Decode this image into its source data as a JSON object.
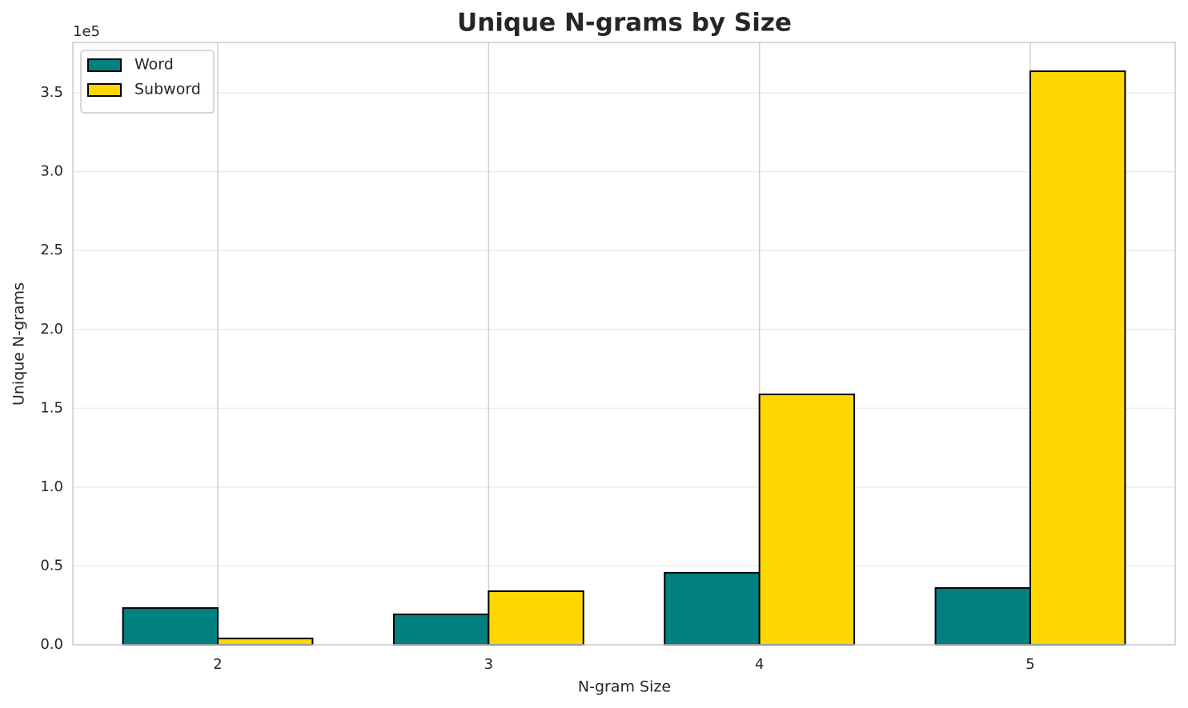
{
  "chart_data": {
    "type": "bar",
    "title": "Unique N-grams by Size",
    "x_label": "N-gram Size",
    "y_label": "Unique N-grams",
    "y_offset_label": "1e5",
    "categories": [
      "2",
      "3",
      "4",
      "5"
    ],
    "series": [
      {
        "name": "Word",
        "color": "#008080",
        "values": [
          23300,
          19300,
          45700,
          36000
        ]
      },
      {
        "name": "Subword",
        "color": "#FFD700",
        "values": [
          4000,
          34000,
          158800,
          363700
        ]
      }
    ],
    "ylim": [
      0,
      382000
    ],
    "yticks": [
      {
        "value": 0,
        "label": "0.0"
      },
      {
        "value": 50000,
        "label": "0.5"
      },
      {
        "value": 100000,
        "label": "1.0"
      },
      {
        "value": 150000,
        "label": "1.5"
      },
      {
        "value": 200000,
        "label": "2.0"
      },
      {
        "value": 250000,
        "label": "2.5"
      },
      {
        "value": 300000,
        "label": "3.0"
      },
      {
        "value": 350000,
        "label": "3.5"
      }
    ],
    "grid": true,
    "legend": "upper left"
  }
}
